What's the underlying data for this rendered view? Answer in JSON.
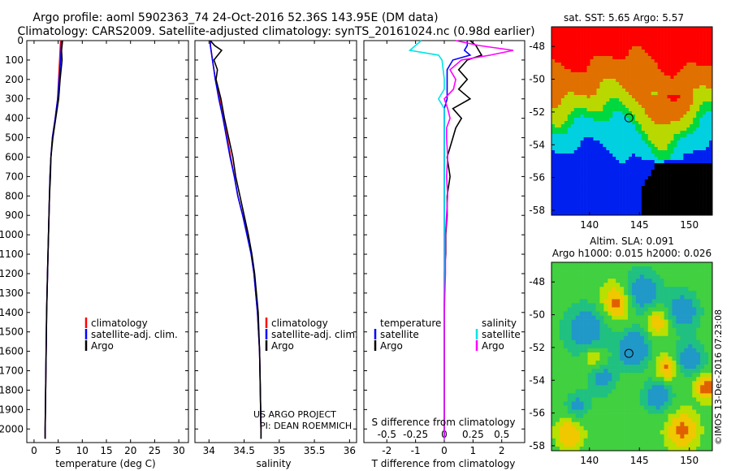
{
  "figure": {
    "title_line1": "Argo profile: aoml 5902363_74 24-Oct-2016 52.36S 143.95E (DM data)",
    "title_line2": "Climatology: CARS2009. Satellite-adjusted climatology: synTS_20161024.nc (0.98d earlier)",
    "credit_line1": "US ARGO PROJECT",
    "credit_line2": "PI: DEAN ROEMMICH",
    "watermark": "©IMOS 13-Dec-2016 07:23:08"
  },
  "colors": {
    "climatology": "#ff0000",
    "satellite": "#0000ff",
    "argo": "#000000",
    "sal_satellite": "#00e5e5",
    "sal_argo": "#ff00ff"
  },
  "depth_ticks": [
    "0",
    "100",
    "200",
    "300",
    "400",
    "500",
    "600",
    "700",
    "800",
    "900",
    "1000",
    "1100",
    "1200",
    "1300",
    "1400",
    "1500",
    "1600",
    "1700",
    "1800",
    "1900",
    "2000"
  ],
  "chart_data": [
    {
      "type": "line",
      "name": "temperature",
      "xlabel": "temperature (deg C)",
      "xlim": [
        -1.5,
        32
      ],
      "ylim": [
        0,
        2070
      ],
      "x_ticks": [
        "0",
        "5",
        "10",
        "15",
        "20",
        "25",
        "30"
      ],
      "legend": [
        "climatology",
        "satellite-adj. clim.",
        "Argo"
      ],
      "depth": [
        0,
        50,
        100,
        200,
        300,
        400,
        500,
        600,
        700,
        800,
        900,
        1000,
        1200,
        1400,
        1600,
        1800,
        2000,
        2050
      ],
      "series": [
        {
          "name": "climatology",
          "values": [
            5.5,
            5.4,
            5.3,
            5.1,
            4.9,
            4.4,
            3.8,
            3.5,
            3.3,
            3.2,
            3.1,
            3.0,
            2.8,
            2.6,
            2.5,
            2.4,
            2.3,
            2.3
          ]
        },
        {
          "name": "satellite-adj. clim.",
          "values": [
            5.7,
            5.6,
            5.5,
            5.2,
            4.9,
            4.4,
            3.8,
            3.5,
            3.3,
            3.2,
            3.1,
            3.0,
            2.8,
            2.6,
            2.5,
            2.4,
            2.3,
            2.3
          ]
        },
        {
          "name": "Argo",
          "values": [
            5.9,
            5.7,
            5.8,
            5.4,
            5.1,
            4.5,
            3.9,
            3.5,
            3.4,
            3.2,
            3.1,
            3.0,
            2.8,
            2.6,
            2.5,
            2.4,
            2.3,
            2.3
          ]
        }
      ]
    },
    {
      "type": "line",
      "name": "salinity",
      "xlabel": "salinity",
      "xlim": [
        33.8,
        36.1
      ],
      "ylim": [
        0,
        2070
      ],
      "x_ticks": [
        "34",
        "34.5",
        "35",
        "35.5",
        "36"
      ],
      "legend": [
        "climatology",
        "satellite-adj. clim.",
        "Argo"
      ],
      "depth": [
        0,
        25,
        50,
        100,
        150,
        200,
        300,
        400,
        500,
        600,
        700,
        800,
        900,
        1000,
        1100,
        1200,
        1400,
        1600,
        1800,
        2000,
        2050
      ],
      "series": [
        {
          "name": "climatology",
          "values": [
            34.02,
            34.02,
            34.03,
            34.05,
            34.07,
            34.09,
            34.15,
            34.2,
            34.26,
            34.31,
            34.36,
            34.41,
            34.48,
            34.55,
            34.6,
            34.64,
            34.69,
            34.72,
            34.73,
            34.74,
            34.74
          ]
        },
        {
          "name": "satellite-adj. clim.",
          "values": [
            34.02,
            34.02,
            34.03,
            34.05,
            34.07,
            34.09,
            34.14,
            34.2,
            34.25,
            34.3,
            34.36,
            34.41,
            34.48,
            34.54,
            34.6,
            34.64,
            34.69,
            34.72,
            34.73,
            34.74,
            34.74
          ]
        },
        {
          "name": "Argo",
          "values": [
            34.02,
            34.08,
            34.18,
            34.07,
            34.12,
            34.1,
            34.17,
            34.22,
            34.28,
            34.34,
            34.38,
            34.44,
            34.5,
            34.56,
            34.61,
            34.65,
            34.7,
            34.72,
            34.73,
            34.74,
            34.74
          ]
        }
      ]
    },
    {
      "type": "line",
      "name": "difference",
      "xlabel": "T difference from climatology",
      "x2label": "S difference from climatology",
      "xlim": [
        -2.8,
        2.8
      ],
      "ylim": [
        0,
        2070
      ],
      "x_ticks": [
        "-2",
        "-1",
        "0",
        "1",
        "2"
      ],
      "x2_ticks": [
        "-0.5",
        "-0.25",
        "0",
        "0.25",
        "0.5"
      ],
      "legend_t_title": "temperature",
      "legend_s_title": "salinity",
      "legend_t": [
        "satellite",
        "Argo"
      ],
      "legend_s": [
        "satellite",
        "Argo"
      ],
      "depth": [
        0,
        25,
        50,
        75,
        100,
        150,
        200,
        250,
        300,
        350,
        400,
        450,
        500,
        600,
        700,
        800,
        900,
        1000,
        1100,
        1200,
        1400,
        1600,
        1800,
        2000,
        2050
      ],
      "series": [
        {
          "name": "T satellite",
          "values": [
            0.8,
            0.8,
            0.7,
            0.9,
            0.3,
            0.1,
            0.1,
            0.1,
            0.1,
            0,
            0,
            0,
            0,
            0,
            0,
            0,
            0,
            0,
            0,
            0,
            0,
            0,
            0,
            0,
            0
          ]
        },
        {
          "name": "T Argo",
          "values": [
            0.9,
            1.1,
            1.2,
            1.3,
            0.8,
            0.5,
            0.8,
            0.5,
            0.9,
            0.3,
            0.6,
            0.4,
            0.3,
            0.1,
            0.2,
            0.1,
            0.1,
            0.05,
            0.05,
            0,
            0,
            0,
            0,
            0,
            0
          ]
        },
        {
          "name": "S satellite",
          "values": [
            -0.2,
            -0.25,
            -0.3,
            -0.05,
            -0.02,
            -0.01,
            0,
            0,
            -0.05,
            0,
            0,
            0,
            0,
            0,
            0,
            0,
            0,
            0,
            0,
            0,
            0,
            0,
            0,
            0,
            0
          ]
        },
        {
          "name": "S Argo",
          "values": [
            0.1,
            0.3,
            0.6,
            0.4,
            0.15,
            0.05,
            0.1,
            0.08,
            0,
            0.03,
            0.05,
            0.02,
            0.02,
            0.03,
            0.02,
            0.03,
            0.02,
            0.01,
            0.01,
            0.01,
            0,
            0,
            0,
            0,
            0
          ]
        }
      ]
    },
    {
      "type": "heatmap",
      "name": "sst_map",
      "title": "sat. SST: 5.65 Argo: 5.57",
      "lon_ticks": [
        "140",
        "145",
        "150"
      ],
      "lat_ticks": [
        "-48",
        "-50",
        "-52",
        "-54",
        "-56",
        "-58"
      ],
      "lon_range": [
        136.2,
        152.3
      ],
      "lat_range": [
        -58.3,
        -46.8
      ],
      "marker": {
        "lon": 143.95,
        "lat": -52.36
      }
    },
    {
      "type": "heatmap",
      "name": "sla_map",
      "title": "Altim. SLA: 0.091",
      "subtitle": "Argo h1000: 0.015 h2000: 0.026",
      "lon_ticks": [
        "140",
        "145",
        "150"
      ],
      "lat_ticks": [
        "-48",
        "-50",
        "-52",
        "-54",
        "-56",
        "-58"
      ],
      "lon_range": [
        136.2,
        152.3
      ],
      "lat_range": [
        -58.3,
        -46.8
      ],
      "marker": {
        "lon": 143.95,
        "lat": -52.36
      }
    }
  ]
}
